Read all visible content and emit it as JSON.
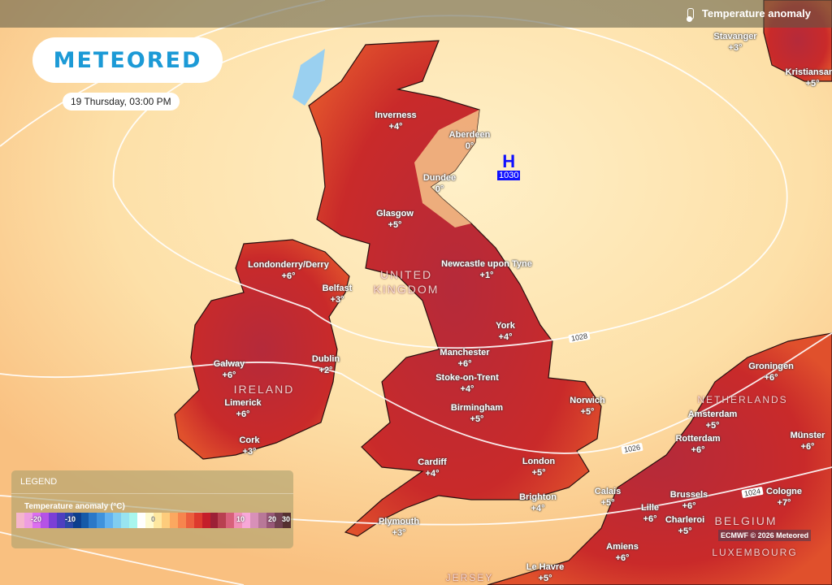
{
  "header": {
    "layer_title": "Temperature anomaly",
    "layer_icon": "thermometer-icon"
  },
  "logo": {
    "text": "METEORED"
  },
  "date": "19 Thursday, 03:00 PM",
  "pressure_system": {
    "type": "H",
    "value": "1030"
  },
  "isobars": [
    "1028",
    "1026",
    "1024"
  ],
  "countries": [
    "UNITED",
    "KINGDOM",
    "IRELAND",
    "NETHERLANDS",
    "BELGIUM",
    "LUXEMBOURG",
    "JERSEY"
  ],
  "cities": [
    {
      "name": "Inverness",
      "value": "+4°"
    },
    {
      "name": "Aberdeen",
      "value": "0°"
    },
    {
      "name": "Dundee",
      "value": "0°"
    },
    {
      "name": "Glasgow",
      "value": "+5°"
    },
    {
      "name": "Londonderry/Derry",
      "value": "+6°"
    },
    {
      "name": "Belfast",
      "value": "+3°"
    },
    {
      "name": "Newcastle upon Tyne",
      "value": "+1°"
    },
    {
      "name": "York",
      "value": "+4°"
    },
    {
      "name": "Manchester",
      "value": "+6°"
    },
    {
      "name": "Stoke-on-Trent",
      "value": "+4°"
    },
    {
      "name": "Birmingham",
      "value": "+5°"
    },
    {
      "name": "Norwich",
      "value": "+5°"
    },
    {
      "name": "Galway",
      "value": "+6°"
    },
    {
      "name": "Dublin",
      "value": "+2°"
    },
    {
      "name": "Limerick",
      "value": "+6°"
    },
    {
      "name": "Cork",
      "value": "+3°"
    },
    {
      "name": "Cardiff",
      "value": "+4°"
    },
    {
      "name": "London",
      "value": "+5°"
    },
    {
      "name": "Brighton",
      "value": "+4°"
    },
    {
      "name": "Plymouth",
      "value": "+3°"
    },
    {
      "name": "Calais",
      "value": "+5°"
    },
    {
      "name": "Lille",
      "value": "+6°"
    },
    {
      "name": "Brussels",
      "value": "+6°"
    },
    {
      "name": "Charleroi",
      "value": "+5°"
    },
    {
      "name": "Amiens",
      "value": "+6°"
    },
    {
      "name": "Le Havre",
      "value": "+5°"
    },
    {
      "name": "Groningen",
      "value": "+6°"
    },
    {
      "name": "Amsterdam",
      "value": "+5°"
    },
    {
      "name": "Rotterdam",
      "value": "+6°"
    },
    {
      "name": "Münster",
      "value": "+6°"
    },
    {
      "name": "Cologne",
      "value": "+7°"
    },
    {
      "name": "Stavanger",
      "value": "+3°"
    },
    {
      "name": "Kristiansand",
      "value": "+5°"
    }
  ],
  "legend": {
    "title": "LEGEND",
    "scale_title": "Temperature anomaly (°C)",
    "ticks": [
      "-20",
      "-10",
      "0",
      "10",
      "20",
      "30"
    ],
    "colors": [
      "#f5b5cc",
      "#ee9ee0",
      "#dc6ff0",
      "#b552e6",
      "#7b3fd6",
      "#4e3fc0",
      "#2c48a8",
      "#0d3f8e",
      "#155aa8",
      "#2a78c8",
      "#3f92dc",
      "#62b2f0",
      "#80cdf0",
      "#98e4f0",
      "#a8f6ee",
      "#ffffff",
      "#fffbd0",
      "#fee8a0",
      "#fdcc7c",
      "#fba860",
      "#f7854e",
      "#ec5f3e",
      "#dd3a2e",
      "#c41e2a",
      "#9c2036",
      "#b84050",
      "#d8607a",
      "#f290b8",
      "#f8a8d8",
      "#d890b8",
      "#b87898",
      "#985878",
      "#704050",
      "#553030"
    ]
  },
  "credit": "ECMWF © 2026 Meteored"
}
